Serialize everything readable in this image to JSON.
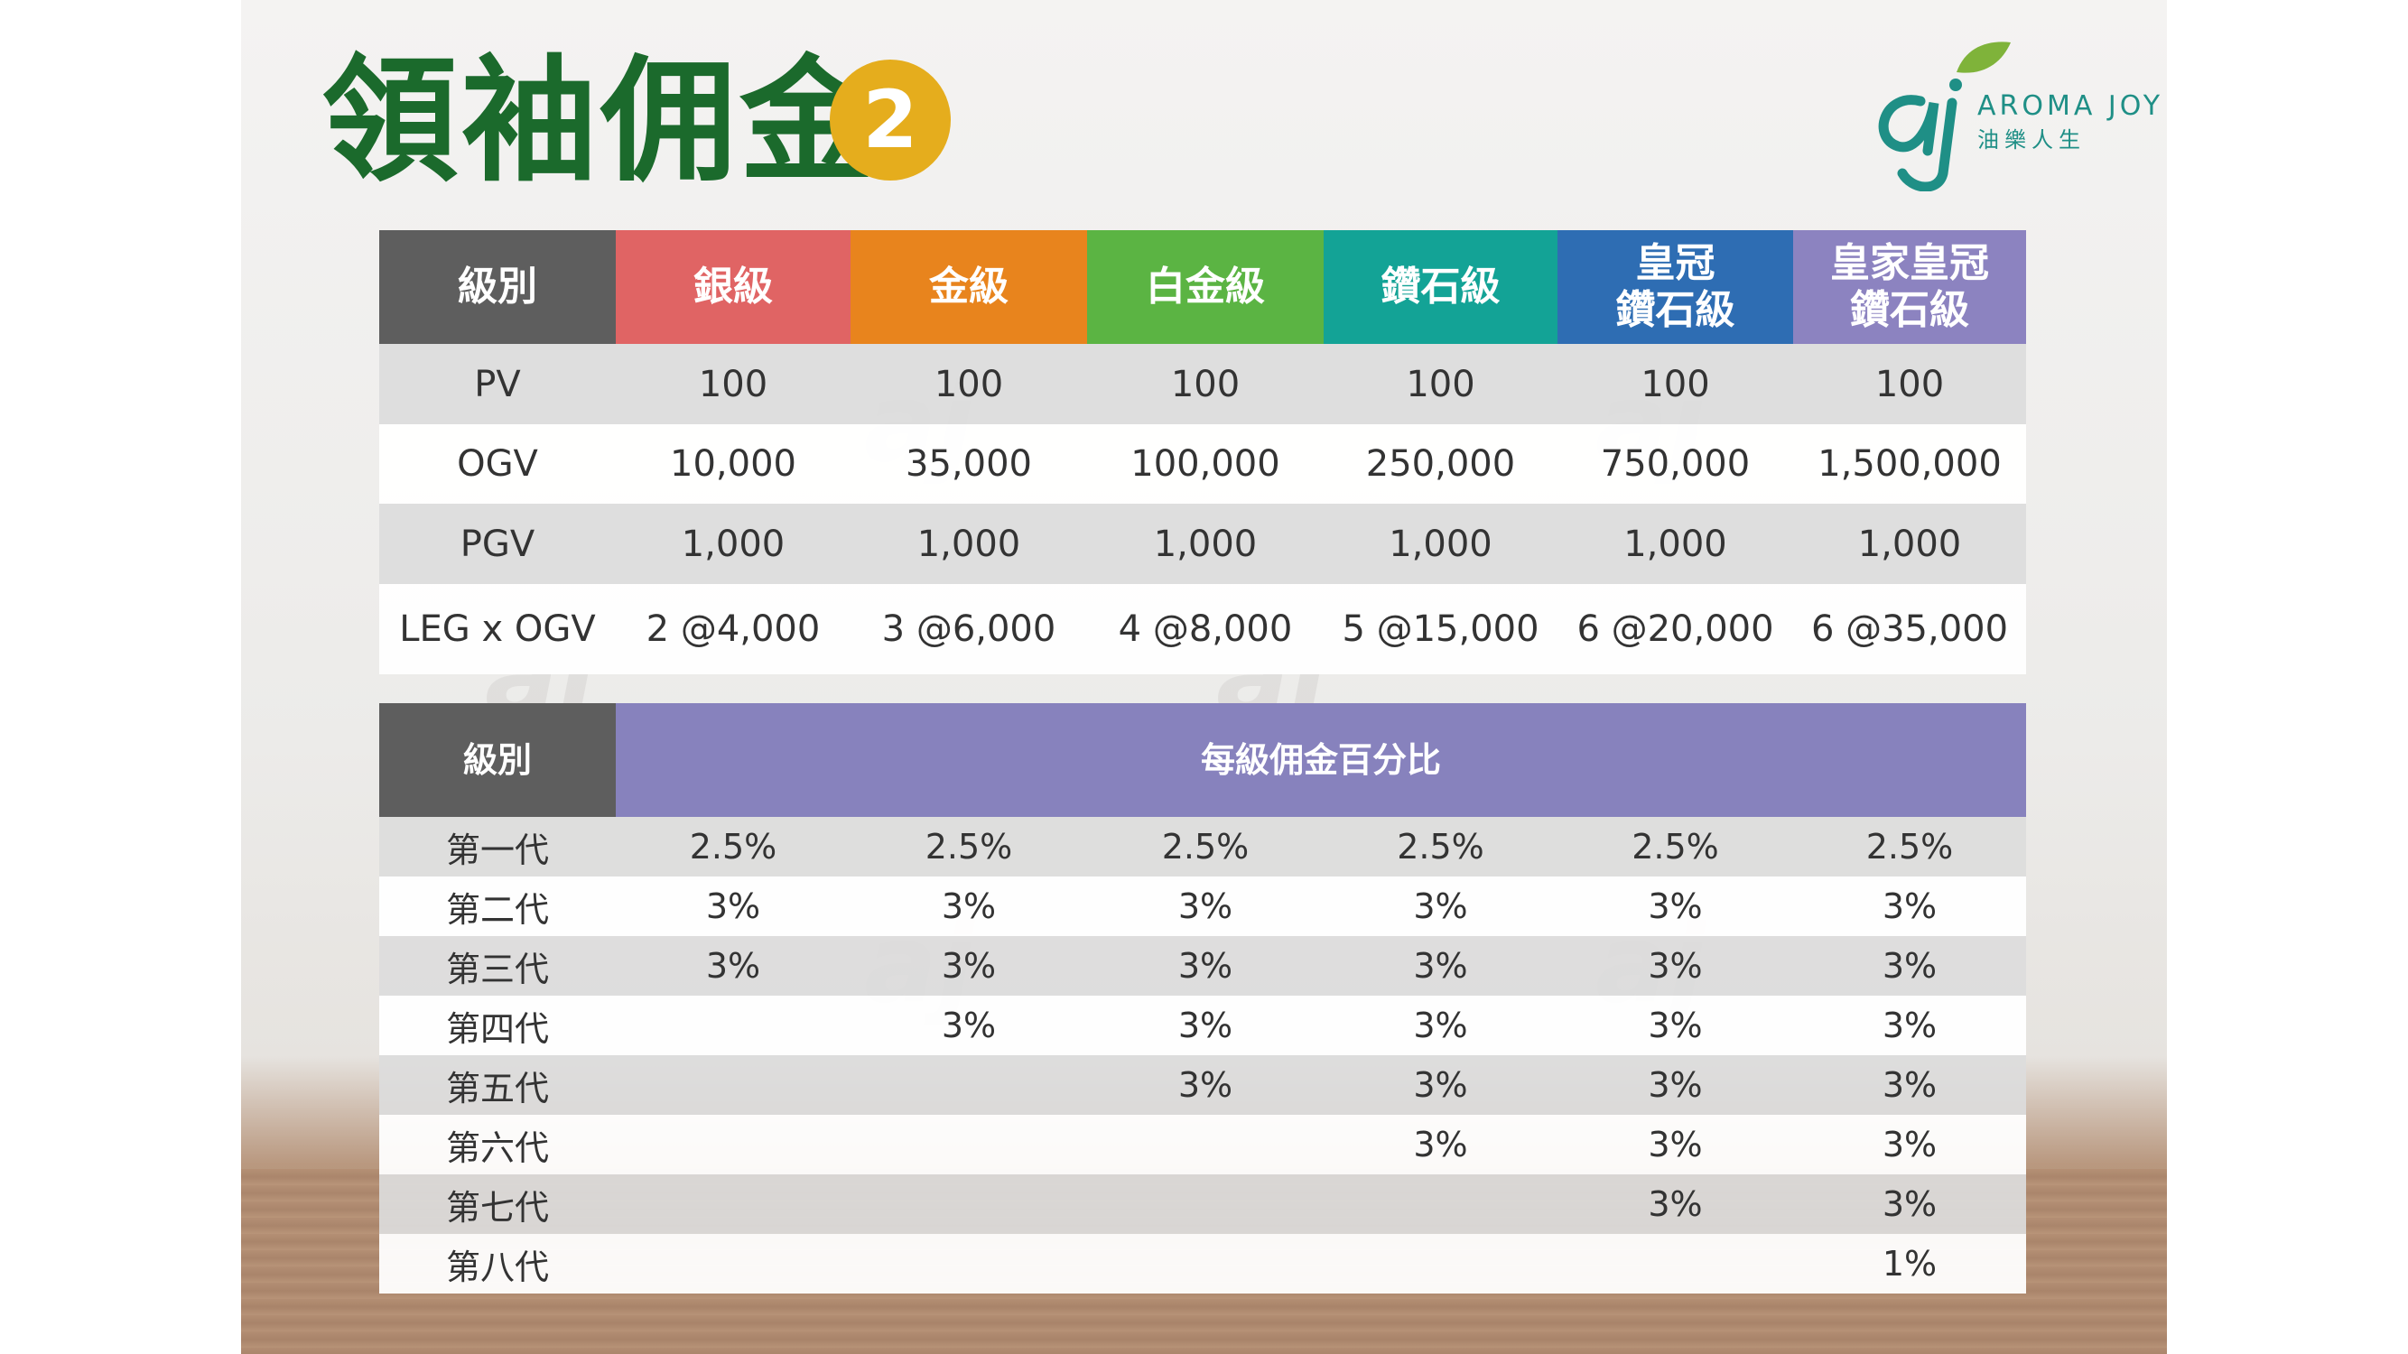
{
  "title": "領袖佣金",
  "badge": "2",
  "logo": {
    "name_en": "AROMA JOY",
    "name_zh": "油樂人生",
    "colors": {
      "teal": "#1f8f86",
      "leaf": "#7fb33a"
    }
  },
  "table1": {
    "columns": [
      {
        "label": "級別",
        "color": "#5e5e5e"
      },
      {
        "label": "銀級",
        "color": "#e06464"
      },
      {
        "label": "金級",
        "color": "#e8841d"
      },
      {
        "label": "白金級",
        "color": "#5bb443"
      },
      {
        "label": "鑽石級",
        "color": "#13a396"
      },
      {
        "label": "皇冠\n鑽石級",
        "color": "#2e6db3"
      },
      {
        "label": "皇家皇冠\n鑽石級",
        "color": "#8c83c0"
      }
    ],
    "rows": [
      {
        "label": "PV",
        "values": [
          "100",
          "100",
          "100",
          "100",
          "100",
          "100"
        ]
      },
      {
        "label": "OGV",
        "values": [
          "10,000",
          "35,000",
          "100,000",
          "250,000",
          "750,000",
          "1,500,000"
        ]
      },
      {
        "label": "PGV",
        "values": [
          "1,000",
          "1,000",
          "1,000",
          "1,000",
          "1,000",
          "1,000"
        ]
      },
      {
        "label": "LEG x OGV",
        "values": [
          "2 @4,000",
          "3 @6,000",
          "4 @8,000",
          "5 @15,000",
          "6 @20,000",
          "6 @35,000"
        ]
      }
    ]
  },
  "table2": {
    "header_label": "級別",
    "header_label_color": "#5e5e5e",
    "header_title": "每級佣金百分比",
    "header_title_color": "#8782bd",
    "rows": [
      {
        "label": "第一代",
        "values": [
          "2.5%",
          "2.5%",
          "2.5%",
          "2.5%",
          "2.5%",
          "2.5%"
        ]
      },
      {
        "label": "第二代",
        "values": [
          "3%",
          "3%",
          "3%",
          "3%",
          "3%",
          "3%"
        ]
      },
      {
        "label": "第三代",
        "values": [
          "3%",
          "3%",
          "3%",
          "3%",
          "3%",
          "3%"
        ]
      },
      {
        "label": "第四代",
        "values": [
          "",
          "3%",
          "3%",
          "3%",
          "3%",
          "3%"
        ]
      },
      {
        "label": "第五代",
        "values": [
          "",
          "",
          "3%",
          "3%",
          "3%",
          "3%"
        ]
      },
      {
        "label": "第六代",
        "values": [
          "",
          "",
          "",
          "3%",
          "3%",
          "3%"
        ]
      },
      {
        "label": "第七代",
        "values": [
          "",
          "",
          "",
          "",
          "3%",
          "3%"
        ]
      },
      {
        "label": "第八代",
        "values": [
          "",
          "",
          "",
          "",
          "",
          "1%"
        ]
      }
    ]
  }
}
